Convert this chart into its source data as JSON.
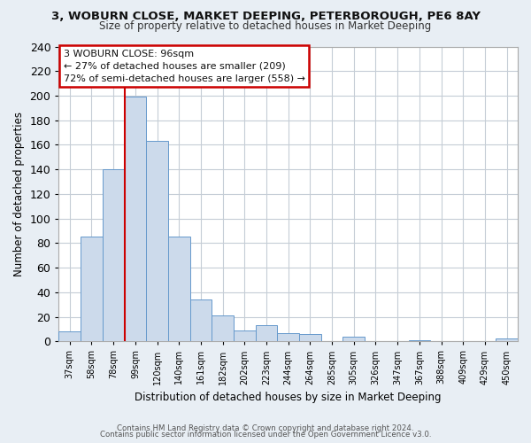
{
  "title": "3, WOBURN CLOSE, MARKET DEEPING, PETERBOROUGH, PE6 8AY",
  "subtitle": "Size of property relative to detached houses in Market Deeping",
  "xlabel": "Distribution of detached houses by size in Market Deeping",
  "ylabel": "Number of detached properties",
  "bar_labels": [
    "37sqm",
    "58sqm",
    "78sqm",
    "99sqm",
    "120sqm",
    "140sqm",
    "161sqm",
    "182sqm",
    "202sqm",
    "223sqm",
    "244sqm",
    "264sqm",
    "285sqm",
    "305sqm",
    "326sqm",
    "347sqm",
    "367sqm",
    "388sqm",
    "409sqm",
    "429sqm",
    "450sqm"
  ],
  "bar_values": [
    8,
    85,
    140,
    199,
    163,
    85,
    34,
    21,
    9,
    13,
    7,
    6,
    0,
    4,
    0,
    0,
    1,
    0,
    0,
    0,
    2
  ],
  "bar_color": "#ccdaeb",
  "bar_edge_color": "#6699cc",
  "vline_color": "#cc0000",
  "ylim": [
    0,
    240
  ],
  "yticks": [
    0,
    20,
    40,
    60,
    80,
    100,
    120,
    140,
    160,
    180,
    200,
    220,
    240
  ],
  "annotation_box_title": "3 WOBURN CLOSE: 96sqm",
  "annotation_line1": "← 27% of detached houses are smaller (209)",
  "annotation_line2": "72% of semi-detached houses are larger (558) →",
  "annotation_box_color": "#ffffff",
  "annotation_box_edge": "#cc0000",
  "footer1": "Contains HM Land Registry data © Crown copyright and database right 2024.",
  "footer2": "Contains public sector information licensed under the Open Government Licence v3.0.",
  "bg_color": "#e8eef4",
  "plot_bg_color": "#ffffff",
  "grid_color": "#c5cdd6"
}
